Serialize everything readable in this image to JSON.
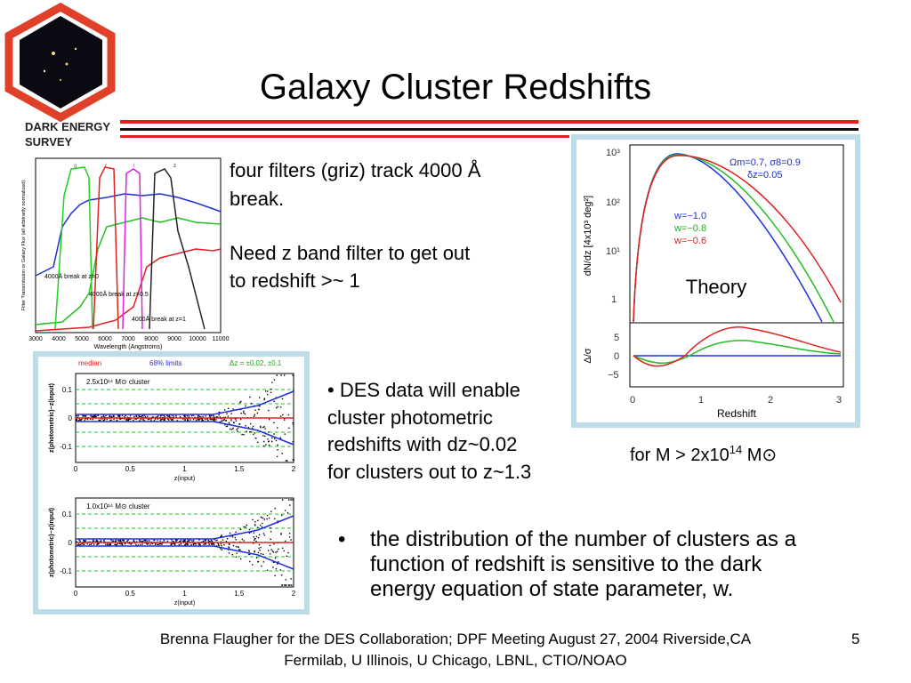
{
  "header": {
    "title": "Galaxy Cluster Redshifts",
    "logo_lines": [
      "DARK ENERGY",
      "SURVEY"
    ]
  },
  "filters_text": {
    "para1": [
      "four filters (griz) track 4000 Å",
      "break."
    ],
    "para2": [
      "Need z band filter to get out",
      "to redshift >~ 1"
    ]
  },
  "des_text": [
    "• DES data will enable",
    "cluster photometric",
    "redshifts with dz~0.02",
    "for clusters out to z~1.3"
  ],
  "theory_label": "Theory",
  "mass_note": {
    "prefix": "for M > 2x10",
    "exponent": "14",
    "suffix": " M⊙"
  },
  "bullet": {
    "marker": "•",
    "lines": [
      "the distribution of the number of clusters as a",
      "function of  redshift is sensitive to the dark",
      "energy equation of state parameter, w."
    ]
  },
  "footer": {
    "line1": "Brenna Flaugher for the DES Collaboration;   DPF Meeting August 27, 2004 Riverside,CA",
    "line2": "Fermilab, U Illinois, U Chicago, LBNL, CTIO/NOAO",
    "page": "5"
  },
  "theory_plot": {
    "y_label": "dN/dz [4x10³ deg²]",
    "params": "Ωm=0.7, σ8=0.9",
    "dz": "δz=0.05",
    "legend": [
      "w=−1.0",
      "w=−0.8",
      "w=−0.6"
    ],
    "yticks": [
      "10³",
      "10²",
      "10¹",
      "1"
    ],
    "resid_label": "Δ/σ",
    "resid_ticks": [
      "5",
      "0",
      "−5"
    ],
    "xticks": [
      "0",
      "1",
      "2",
      "3"
    ],
    "x_label": "Redshift"
  },
  "filter_plot": {
    "y_label": "Filter Transmission or Galaxy Flux (all arbitrarily normalized)",
    "x_label": "Wavelength (Angstroms)",
    "xticks": [
      "3000",
      "4000",
      "5000",
      "6000",
      "7000",
      "8000",
      "9000",
      "10000",
      "11000"
    ],
    "bands": [
      "g",
      "r",
      "i",
      "z"
    ],
    "notes": [
      "4000Å break at z=0",
      "4000Å break at z=0.5",
      "4000Å break at z=1"
    ]
  },
  "photoz_plot": {
    "header": [
      "median",
      "68% limits",
      "Δz = ±0.02, ±0.1"
    ],
    "panels": [
      "2.5x10¹⁴ M⊙ cluster",
      "1.0x10¹⁴ M⊙ cluster"
    ],
    "y_label": "z(photometric)−z(input)",
    "x_label": "z(input)",
    "xticks": [
      "0",
      "0.5",
      "1",
      "1.5",
      "2"
    ],
    "yticks": [
      "0.1",
      "0",
      "-0.1"
    ]
  }
}
